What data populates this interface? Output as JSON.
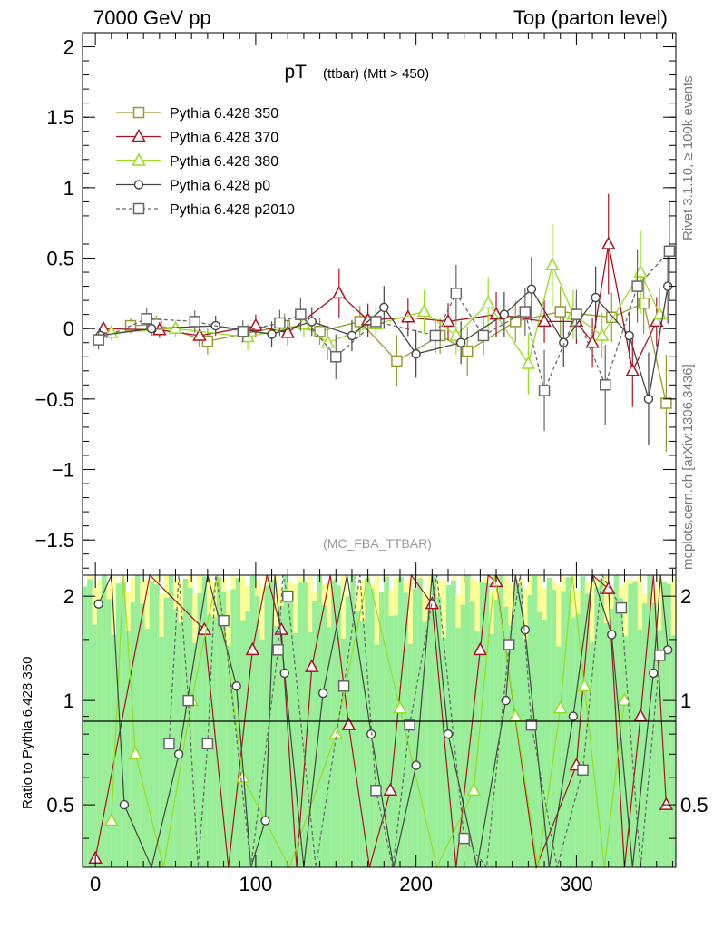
{
  "header": {
    "left": "7000 GeV pp",
    "right": "Top (parton level)"
  },
  "side_labels": {
    "rivet": "Rivet 3.1.10, ≥ 100k events",
    "mcplots": "mcplots.cern.ch [arXiv:1306.3436]"
  },
  "chart_data": {
    "type": "line",
    "title_main": "pT",
    "title_sub": "(ttbar) (Mtt > 450)",
    "analysis": "(MC_FBA_TTBAR)",
    "xlabel": "",
    "ylabel": "",
    "xlim": [
      -8,
      362
    ],
    "ylim": [
      -1.75,
      2.1
    ],
    "xticks": [
      0,
      100,
      200,
      300
    ],
    "yticks": [
      -1.5,
      -1,
      -0.5,
      0,
      0.5,
      1,
      1.5,
      2
    ],
    "ytick_labels": [
      "−1.5",
      "−1",
      "−0.5",
      "0",
      "0.5",
      "1",
      "1.5",
      "2"
    ],
    "legend_position": "top-left",
    "grid": false,
    "series": [
      {
        "name": "Pythia 6.428 350",
        "color": "#999933",
        "marker": "square",
        "dashed": false,
        "points": [
          [
            22,
            0.02
          ],
          [
            38,
            0.03
          ],
          [
            70,
            -0.09
          ],
          [
            118,
            0.02
          ],
          [
            140,
            -0.02
          ],
          [
            165,
            0.05
          ],
          [
            188,
            -0.23
          ],
          [
            215,
            -0.05
          ],
          [
            232,
            -0.16
          ],
          [
            262,
            0.05
          ],
          [
            290,
            0.12
          ],
          [
            322,
            0.08
          ],
          [
            342,
            0.18
          ],
          [
            356,
            -0.53
          ]
        ]
      },
      {
        "name": "Pythia 6.428 370",
        "color": "#aa1122",
        "marker": "triangle",
        "dashed": false,
        "points": [
          [
            5,
            0.0
          ],
          [
            40,
            -0.01
          ],
          [
            65,
            -0.05
          ],
          [
            100,
            0.02
          ],
          [
            120,
            -0.03
          ],
          [
            152,
            0.25
          ],
          [
            170,
            0.06
          ],
          [
            195,
            0.08
          ],
          [
            220,
            0.05
          ],
          [
            250,
            0.1
          ],
          [
            280,
            0.05
          ],
          [
            300,
            0.05
          ],
          [
            310,
            -0.1
          ],
          [
            320,
            0.6
          ],
          [
            335,
            -0.3
          ],
          [
            350,
            0.05
          ]
        ]
      },
      {
        "name": "Pythia 6.428 380",
        "color": "#99dd22",
        "marker": "triangle",
        "dashed": false,
        "points": [
          [
            10,
            -0.03
          ],
          [
            50,
            0.0
          ],
          [
            95,
            -0.06
          ],
          [
            130,
            0.03
          ],
          [
            145,
            -0.1
          ],
          [
            175,
            0.03
          ],
          [
            205,
            0.12
          ],
          [
            225,
            -0.05
          ],
          [
            245,
            0.18
          ],
          [
            270,
            -0.25
          ],
          [
            285,
            0.45
          ],
          [
            298,
            0.1
          ],
          [
            316,
            -0.05
          ],
          [
            340,
            0.4
          ],
          [
            352,
            0.1
          ]
        ]
      },
      {
        "name": "Pythia 6.428 p0",
        "color": "#444444",
        "marker": "circle",
        "dashed": false,
        "points": [
          [
            3,
            -0.05
          ],
          [
            35,
            0.0
          ],
          [
            75,
            0.02
          ],
          [
            110,
            -0.04
          ],
          [
            135,
            0.05
          ],
          [
            160,
            -0.05
          ],
          [
            180,
            0.15
          ],
          [
            200,
            -0.18
          ],
          [
            228,
            -0.1
          ],
          [
            255,
            0.1
          ],
          [
            272,
            0.28
          ],
          [
            292,
            -0.1
          ],
          [
            312,
            0.22
          ],
          [
            333,
            -0.05
          ],
          [
            345,
            -0.5
          ],
          [
            357,
            0.3
          ]
        ]
      },
      {
        "name": "Pythia 6.428 p2010",
        "color": "#666666",
        "marker": "square",
        "dashed": true,
        "points": [
          [
            2,
            -0.08
          ],
          [
            32,
            0.07
          ],
          [
            62,
            0.05
          ],
          [
            92,
            -0.02
          ],
          [
            115,
            0.04
          ],
          [
            128,
            0.1
          ],
          [
            150,
            -0.2
          ],
          [
            175,
            0.05
          ],
          [
            212,
            -0.05
          ],
          [
            225,
            0.25
          ],
          [
            242,
            -0.05
          ],
          [
            268,
            0.12
          ],
          [
            280,
            -0.44
          ],
          [
            300,
            0.1
          ],
          [
            318,
            -0.4
          ],
          [
            338,
            0.3
          ],
          [
            358,
            0.55
          ]
        ]
      }
    ],
    "ratio": {
      "ylabel": "Ratio to Pythia 6.428 350",
      "ylim": [
        0.33,
        2.3
      ],
      "yticks": [
        0.5,
        1,
        2
      ],
      "ytick_labels": [
        "0.5",
        "1",
        "2"
      ],
      "reference": 1,
      "band_colors": [
        "#ffff99",
        "#99ee99"
      ],
      "series": [
        {
          "name": "Pythia 6.428 370",
          "points": [
            [
              0,
              0.35
            ],
            [
              68,
              1.6
            ],
            [
              98,
              1.4
            ],
            [
              116,
              1.6
            ],
            [
              135,
              1.25
            ],
            [
              158,
              0.85
            ],
            [
              184,
              0.55
            ],
            [
              210,
              1.9
            ],
            [
              240,
              1.4
            ],
            [
              250,
              2.2
            ],
            [
              300,
              0.65
            ],
            [
              320,
              2.1
            ],
            [
              340,
              0.9
            ],
            [
              356,
              0.5
            ]
          ]
        },
        {
          "name": "Pythia 6.428 380",
          "points": [
            [
              10,
              0.45
            ],
            [
              25,
              0.7
            ],
            [
              60,
              1.0
            ],
            [
              92,
              0.6
            ],
            [
              150,
              0.8
            ],
            [
              190,
              0.95
            ],
            [
              236,
              0.55
            ],
            [
              262,
              0.9
            ],
            [
              290,
              0.95
            ],
            [
              305,
              1.1
            ],
            [
              330,
              1.0
            ]
          ]
        },
        {
          "name": "Pythia 6.428 p0",
          "points": [
            [
              2,
              1.9
            ],
            [
              18,
              0.5
            ],
            [
              52,
              0.7
            ],
            [
              88,
              1.1
            ],
            [
              106,
              0.45
            ],
            [
              118,
              1.2
            ],
            [
              142,
              1.05
            ],
            [
              172,
              0.8
            ],
            [
              200,
              0.65
            ],
            [
              220,
              0.8
            ],
            [
              256,
              1.0
            ],
            [
              268,
              1.6
            ],
            [
              298,
              0.9
            ],
            [
              322,
              1.55
            ],
            [
              348,
              1.2
            ],
            [
              357,
              1.4
            ]
          ]
        },
        {
          "name": "Pythia 6.428 p2010",
          "points": [
            [
              46,
              0.75
            ],
            [
              58,
              1.0
            ],
            [
              70,
              0.75
            ],
            [
              80,
              1.7
            ],
            [
              114,
              1.4
            ],
            [
              120,
              2.0
            ],
            [
              155,
              1.1
            ],
            [
              175,
              0.55
            ],
            [
              196,
              0.85
            ],
            [
              230,
              0.4
            ],
            [
              258,
              1.45
            ],
            [
              272,
              0.85
            ],
            [
              304,
              0.63
            ],
            [
              328,
              1.85
            ],
            [
              352,
              1.35
            ]
          ]
        }
      ]
    }
  }
}
